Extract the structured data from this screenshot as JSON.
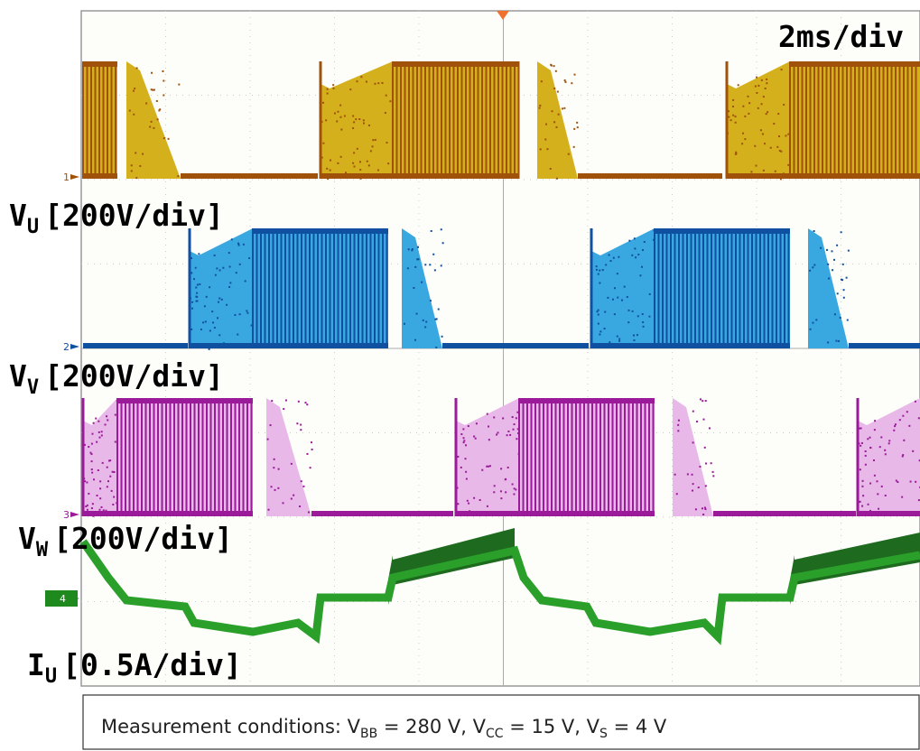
{
  "scale": "2ms/div",
  "channels": [
    {
      "marker": "1",
      "symbol": "V",
      "subscript": "U",
      "scale": "[200V/div]"
    },
    {
      "marker": "2",
      "symbol": "V",
      "subscript": "V",
      "scale": "[200V/div]"
    },
    {
      "marker": "3",
      "symbol": "V",
      "subscript": "W",
      "scale": "[200V/div]"
    },
    {
      "marker": "4",
      "symbol": "I",
      "subscript": "U",
      "scale": "[0.5A/div]"
    }
  ],
  "conditions": [
    "Measurement conditions: V",
    "BB",
    " = 280 V, V",
    "CC",
    " = 15 V, V",
    "S",
    " = 4 V"
  ]
}
